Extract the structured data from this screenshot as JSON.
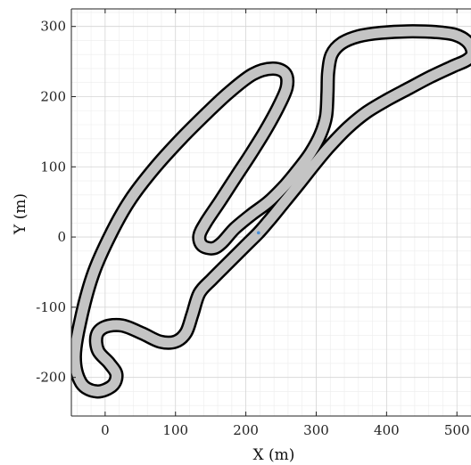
{
  "chart_data": {
    "type": "line",
    "title": "",
    "xlabel": "X (m)",
    "ylabel": "Y (m)",
    "xlim": [
      -48,
      520
    ],
    "ylim": [
      -255,
      325
    ],
    "xticks": [
      0,
      100,
      200,
      300,
      400,
      500
    ],
    "yticks": [
      300,
      200,
      100,
      0,
      -100,
      -200
    ],
    "xtick_labels": [
      "0",
      "100",
      "200",
      "300",
      "400",
      "500"
    ],
    "ytick_labels": [
      "300",
      "200",
      "100",
      "0",
      "-100",
      "-200"
    ],
    "grid": true,
    "minor_grid": true,
    "track_fill_color": "#c4c4c4",
    "track_edge_color": "#000000",
    "marker_color": "#4a90d9",
    "marker": {
      "x": 218,
      "y": 6
    },
    "series": [
      {
        "values": [
          {
            "x": 218,
            "y": 6
          },
          {
            "x": 232,
            "y": 22
          },
          {
            "x": 250,
            "y": 44
          },
          {
            "x": 275,
            "y": 75
          },
          {
            "x": 298,
            "y": 104
          },
          {
            "x": 318,
            "y": 128
          },
          {
            "x": 345,
            "y": 156
          },
          {
            "x": 372,
            "y": 178
          },
          {
            "x": 402,
            "y": 196
          },
          {
            "x": 432,
            "y": 212
          },
          {
            "x": 462,
            "y": 228
          },
          {
            "x": 494,
            "y": 243
          },
          {
            "x": 514,
            "y": 252
          },
          {
            "x": 522,
            "y": 262
          },
          {
            "x": 516,
            "y": 277
          },
          {
            "x": 498,
            "y": 288
          },
          {
            "x": 470,
            "y": 292
          },
          {
            "x": 430,
            "y": 293
          },
          {
            "x": 392,
            "y": 291
          },
          {
            "x": 360,
            "y": 286
          },
          {
            "x": 336,
            "y": 276
          },
          {
            "x": 322,
            "y": 260
          },
          {
            "x": 317,
            "y": 235
          },
          {
            "x": 316,
            "y": 205
          },
          {
            "x": 314,
            "y": 172
          },
          {
            "x": 306,
            "y": 146
          },
          {
            "x": 292,
            "y": 120
          },
          {
            "x": 275,
            "y": 97
          },
          {
            "x": 256,
            "y": 74
          },
          {
            "x": 232,
            "y": 50
          },
          {
            "x": 208,
            "y": 32
          },
          {
            "x": 184,
            "y": 12
          },
          {
            "x": 166,
            "y": -8
          },
          {
            "x": 153,
            "y": -16
          },
          {
            "x": 138,
            "y": -12
          },
          {
            "x": 134,
            "y": 2
          },
          {
            "x": 144,
            "y": 22
          },
          {
            "x": 164,
            "y": 52
          },
          {
            "x": 186,
            "y": 86
          },
          {
            "x": 207,
            "y": 118
          },
          {
            "x": 228,
            "y": 152
          },
          {
            "x": 246,
            "y": 185
          },
          {
            "x": 258,
            "y": 213
          },
          {
            "x": 256,
            "y": 233
          },
          {
            "x": 238,
            "y": 240
          },
          {
            "x": 210,
            "y": 232
          },
          {
            "x": 176,
            "y": 206
          },
          {
            "x": 144,
            "y": 176
          },
          {
            "x": 108,
            "y": 140
          },
          {
            "x": 70,
            "y": 98
          },
          {
            "x": 35,
            "y": 52
          },
          {
            "x": 8,
            "y": 4
          },
          {
            "x": -16,
            "y": -50
          },
          {
            "x": -33,
            "y": -110
          },
          {
            "x": -43,
            "y": -170
          },
          {
            "x": -34,
            "y": -208
          },
          {
            "x": -12,
            "y": -220
          },
          {
            "x": 10,
            "y": -212
          },
          {
            "x": 16,
            "y": -196
          },
          {
            "x": 6,
            "y": -180
          },
          {
            "x": -10,
            "y": -162
          },
          {
            "x": -12,
            "y": -140
          },
          {
            "x": 0,
            "y": -128
          },
          {
            "x": 24,
            "y": -126
          },
          {
            "x": 52,
            "y": -137
          },
          {
            "x": 78,
            "y": -149
          },
          {
            "x": 100,
            "y": -149
          },
          {
            "x": 115,
            "y": -136
          },
          {
            "x": 124,
            "y": -110
          },
          {
            "x": 134,
            "y": -80
          },
          {
            "x": 152,
            "y": -60
          },
          {
            "x": 176,
            "y": -36
          },
          {
            "x": 198,
            "y": -14
          },
          {
            "x": 218,
            "y": 6
          }
        ]
      }
    ]
  }
}
